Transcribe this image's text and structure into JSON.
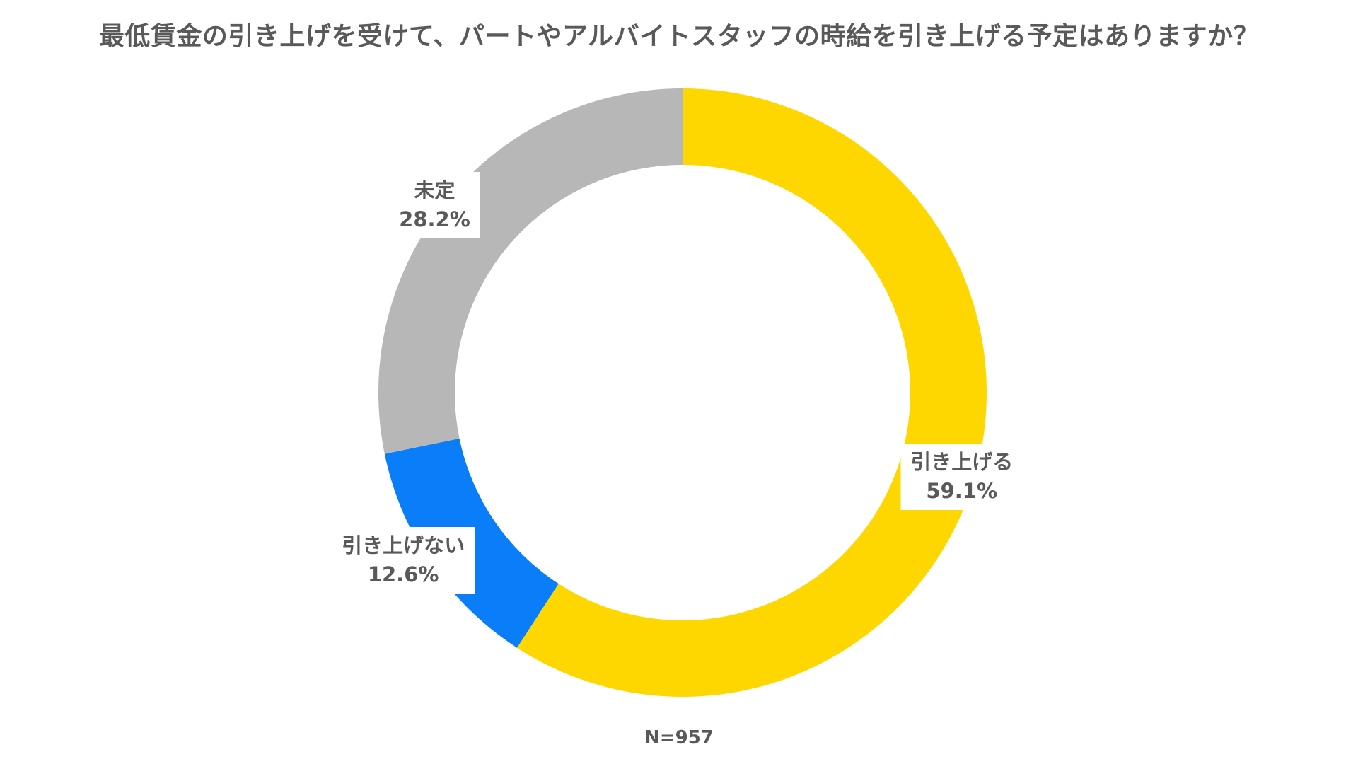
{
  "chart_data": {
    "type": "pie",
    "title": "最低賃金の引き上げを受けて、パートやアルバイトスタッフの時給を引き上げる予定はありますか？",
    "note": "N=957",
    "series": [
      {
        "name": "",
        "slices": [
          {
            "label": "引き上げる",
            "value": 59.1,
            "value_text": "59.1%",
            "color": "#FFD700"
          },
          {
            "label": "引き上げない",
            "value": 12.6,
            "value_text": "12.6%",
            "color": "#0A7EF9"
          },
          {
            "label": "未定",
            "value": 28.2,
            "value_text": "28.2%",
            "color": "#B7B7B7"
          }
        ]
      }
    ],
    "donut": true,
    "start_angle": "12 o'clock",
    "direction": "clockwise",
    "legend": "none"
  }
}
